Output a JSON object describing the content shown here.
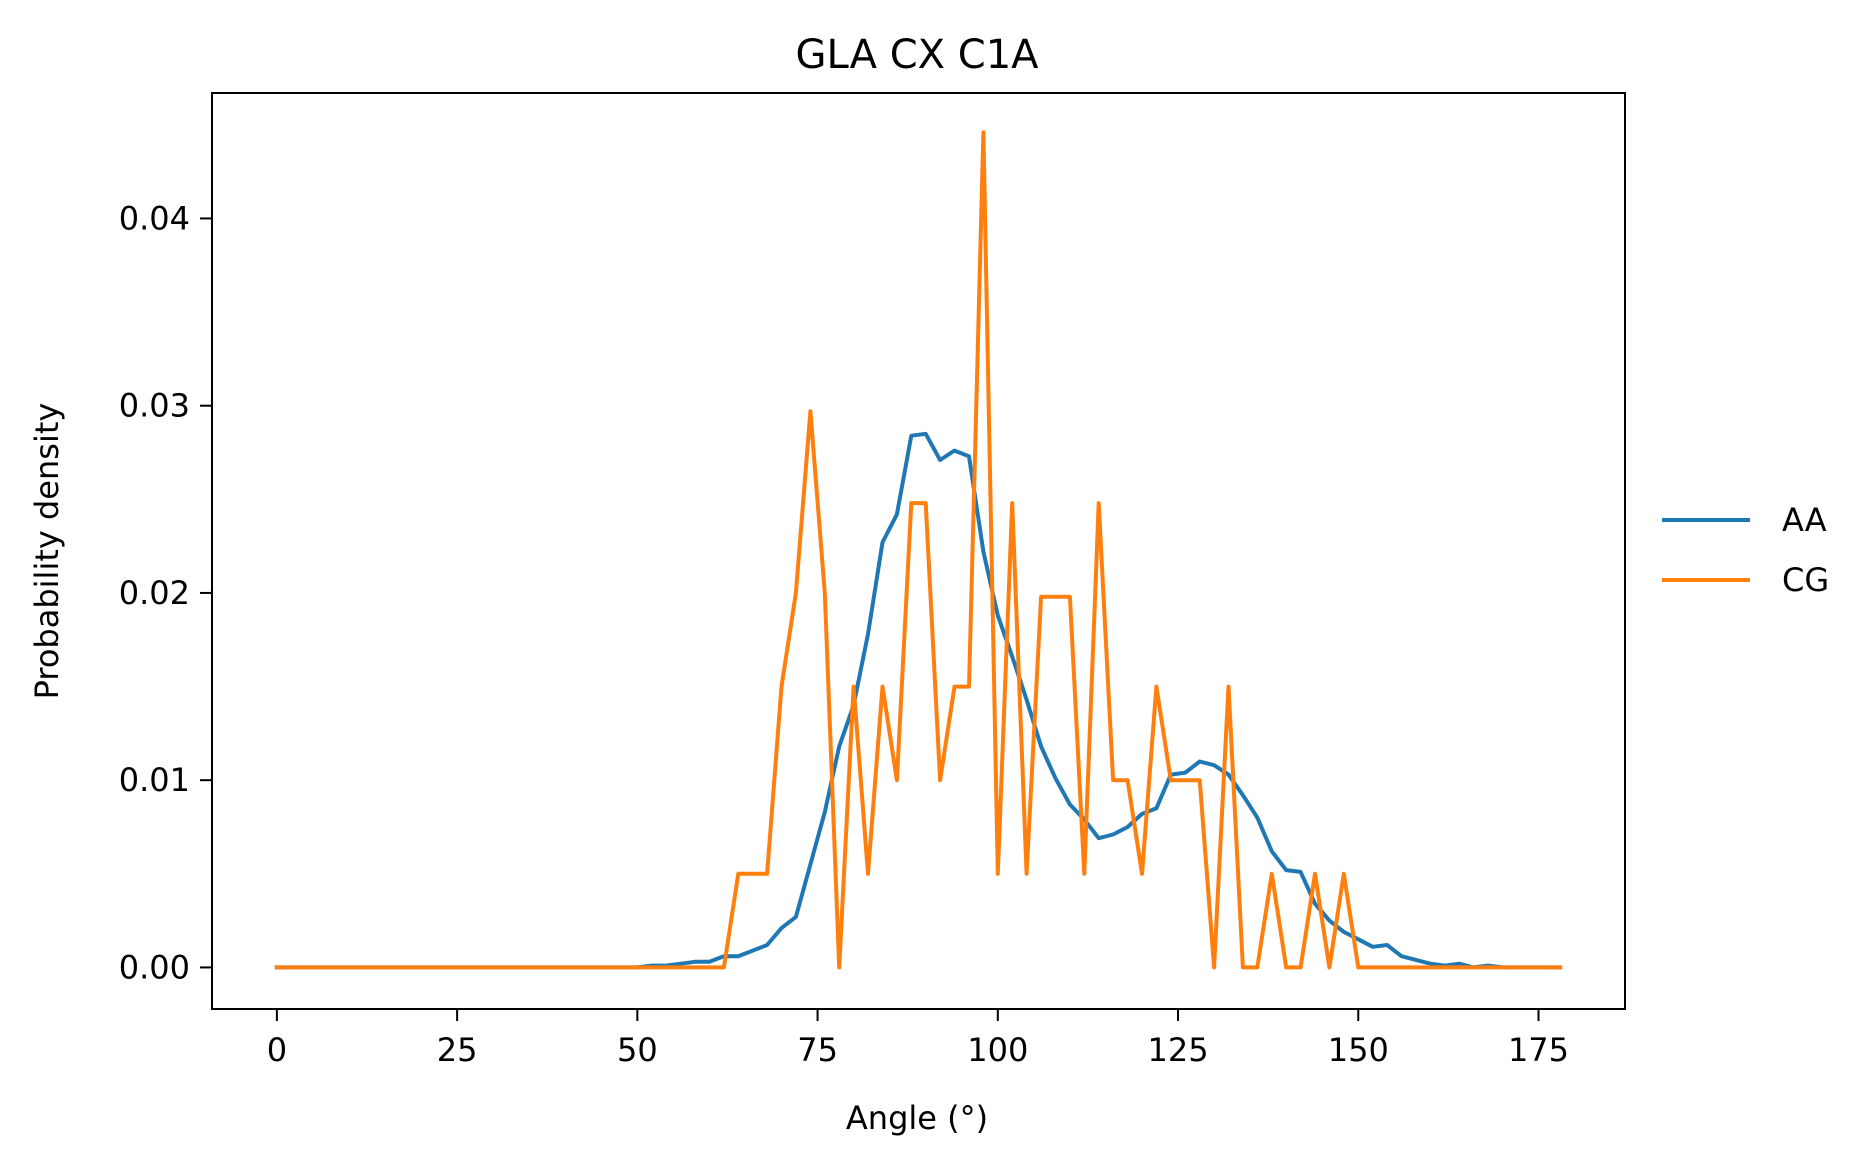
{
  "chart_data": {
    "type": "line",
    "title": "GLA CX C1A",
    "xlabel": "Angle (°)",
    "ylabel": "Probability density",
    "xlim": [
      -9,
      187
    ],
    "ylim": [
      -0.00222,
      0.0467
    ],
    "xticks": [
      0,
      25,
      50,
      75,
      100,
      125,
      150,
      175
    ],
    "xtick_labels": [
      "0",
      "25",
      "50",
      "75",
      "100",
      "125",
      "150",
      "175"
    ],
    "yticks": [
      0.0,
      0.01,
      0.02,
      0.03,
      0.04
    ],
    "ytick_labels": [
      "0.00",
      "0.01",
      "0.02",
      "0.03",
      "0.04"
    ],
    "grid": false,
    "legend_position": "outside-right",
    "x": [
      0,
      2,
      4,
      6,
      8,
      10,
      12,
      14,
      16,
      18,
      20,
      22,
      24,
      26,
      28,
      30,
      32,
      34,
      36,
      38,
      40,
      42,
      44,
      46,
      48,
      50,
      52,
      54,
      56,
      58,
      60,
      62,
      64,
      66,
      68,
      70,
      72,
      74,
      76,
      78,
      80,
      82,
      84,
      86,
      88,
      90,
      92,
      94,
      96,
      98,
      100,
      102,
      104,
      106,
      108,
      110,
      112,
      114,
      116,
      118,
      120,
      122,
      124,
      126,
      128,
      130,
      132,
      134,
      136,
      138,
      140,
      142,
      144,
      146,
      148,
      150,
      152,
      154,
      156,
      158,
      160,
      162,
      164,
      166,
      168,
      170,
      172,
      174,
      176,
      178
    ],
    "series": [
      {
        "name": "AA",
        "color": "#1f77b4",
        "values": [
          0,
          0,
          0,
          0,
          0,
          0,
          0,
          0,
          0,
          0,
          0,
          0,
          0,
          0,
          0,
          0,
          0,
          0,
          0,
          0,
          0,
          0,
          0,
          0,
          0,
          0,
          0.0001,
          0.0001,
          0.0002,
          0.0003,
          0.0003,
          0.0006,
          0.0006,
          0.0009,
          0.0012,
          0.0021,
          0.0027,
          0.0055,
          0.0083,
          0.0118,
          0.014,
          0.0178,
          0.0227,
          0.0242,
          0.0284,
          0.0285,
          0.0271,
          0.0276,
          0.0273,
          0.0222,
          0.0188,
          0.0166,
          0.0143,
          0.0118,
          0.0101,
          0.0087,
          0.0079,
          0.0069,
          0.0071,
          0.0075,
          0.0082,
          0.0085,
          0.0103,
          0.0104,
          0.011,
          0.0108,
          0.0103,
          0.0092,
          0.008,
          0.0062,
          0.0052,
          0.0051,
          0.0034,
          0.0025,
          0.0019,
          0.0015,
          0.0011,
          0.0012,
          0.0006,
          0.0004,
          0.0002,
          0.0001,
          0.0002,
          0,
          0.0001,
          0,
          0,
          0,
          0,
          0
        ]
      },
      {
        "name": "CG",
        "color": "#ff7f0e",
        "values": [
          0,
          0,
          0,
          0,
          0,
          0,
          0,
          0,
          0,
          0,
          0,
          0,
          0,
          0,
          0,
          0,
          0,
          0,
          0,
          0,
          0,
          0,
          0,
          0,
          0,
          0,
          0,
          0,
          0,
          0,
          0,
          0,
          0.005,
          0.005,
          0.005,
          0.015,
          0.02,
          0.0297,
          0.02,
          0,
          0.015,
          0.005,
          0.015,
          0.01,
          0.0248,
          0.0248,
          0.01,
          0.015,
          0.015,
          0.0446,
          0.005,
          0.0248,
          0.005,
          0.0198,
          0.0198,
          0.0198,
          0.005,
          0.0248,
          0.01,
          0.01,
          0.005,
          0.015,
          0.01,
          0.01,
          0.01,
          0,
          0.015,
          0,
          0,
          0.005,
          0,
          0,
          0.005,
          0,
          0.005,
          0,
          0,
          0,
          0,
          0,
          0,
          0,
          0,
          0,
          0,
          0,
          0,
          0,
          0,
          0
        ]
      }
    ]
  }
}
